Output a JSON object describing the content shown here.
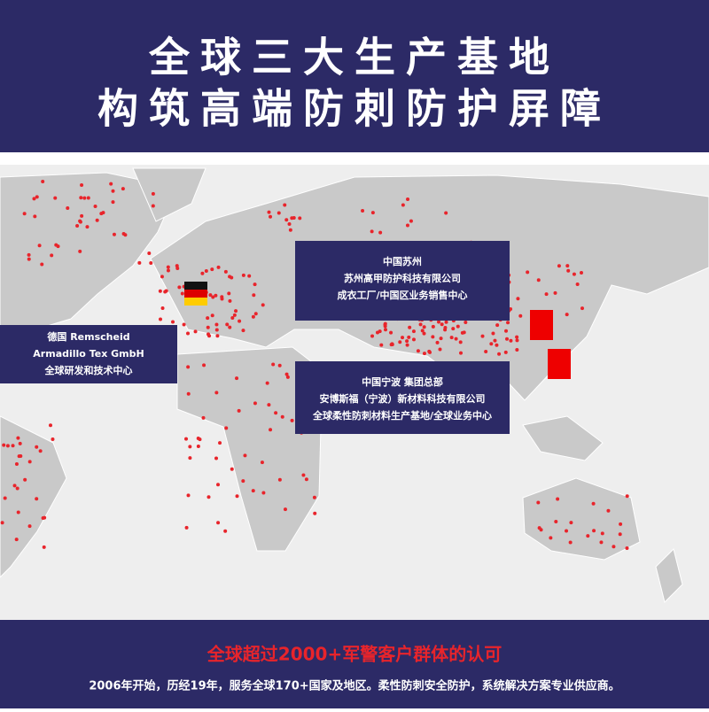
{
  "header": {
    "line1": "全球三大生产基地",
    "line2": "构筑高端防刺防护屏障"
  },
  "bases": [
    {
      "lines": [
        "中国苏州",
        "苏州高甲防护科技有限公司",
        "成衣工厂/中国区业务销售中心"
      ]
    },
    {
      "lines": [
        "德国 Remscheid",
        "Armadillo Tex GmbH",
        "全球研发和技术中心"
      ]
    },
    {
      "lines": [
        "中国宁波 集团总部",
        "安博斯福（宁波）新材料科技有限公司",
        "全球柔性防刺材料生产基地/全球业务中心"
      ]
    }
  ],
  "footer": {
    "headline": "全球超过2000+军警客户群体的认可",
    "tagline": "2006年开始，历经19年，服务全球170+国家及地区。柔性防刺安全防护，系统解决方案专业供应商。"
  }
}
